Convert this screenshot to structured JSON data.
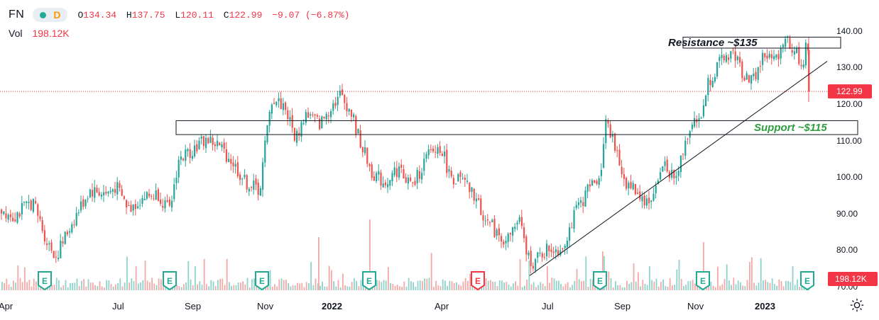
{
  "legend": {
    "symbol": "FN",
    "interval_label": "D",
    "open_label": "O",
    "open": "134.34",
    "high_label": "H",
    "high": "137.75",
    "low_label": "L",
    "low": "120.11",
    "close_label": "C",
    "close": "122.99",
    "change": "−9.07 (−6.87%)",
    "vol_label": "Vol",
    "vol_value": "198.12K"
  },
  "colors": {
    "up": "#26a69a",
    "down": "#ef5350",
    "up_vol": "#8fd3cb",
    "down_vol": "#f4a9a7",
    "support_text": "#2e9e3e",
    "price_label_bg": "#f23645",
    "earnings_green": "#22ab94",
    "earnings_red": "#f23645"
  },
  "chart_data": {
    "type": "candlestick",
    "y_axis": {
      "ticks": [
        "140.00",
        "130.00",
        "120.00",
        "110.00",
        "100.00",
        "90.00",
        "80.00",
        "70.00"
      ],
      "ylim": [
        70,
        142
      ]
    },
    "x_axis": {
      "ticks": [
        "Apr",
        "Jul",
        "Sep",
        "Nov",
        "2022",
        "Apr",
        "Jul",
        "Sep",
        "Nov",
        "2023"
      ],
      "bold_ticks": [
        "2022",
        "2023"
      ]
    },
    "last_price_label": "122.99",
    "last_price": 122.99,
    "volume_label": "198.12K",
    "annotations": [
      {
        "kind": "zone",
        "label": "Resistance ~$135",
        "low": 134.8,
        "high": 137.8
      },
      {
        "kind": "zone",
        "label": "Support ~$115",
        "low": 111.2,
        "high": 115
      },
      {
        "kind": "trendline",
        "from": [
          "Jun 2022",
          72.7
        ],
        "to": [
          "Feb 2023",
          131.2
        ]
      }
    ],
    "earnings_markers": [
      {
        "label": "E",
        "when": "May 2021",
        "color": "green"
      },
      {
        "label": "E",
        "when": "Aug 2021",
        "color": "green"
      },
      {
        "label": "E",
        "when": "Nov 2021",
        "color": "green"
      },
      {
        "label": "E",
        "when": "Feb 2022",
        "color": "green"
      },
      {
        "label": "E",
        "when": "May 2022",
        "color": "red"
      },
      {
        "label": "E",
        "when": "Aug 2022",
        "color": "green"
      },
      {
        "label": "E",
        "when": "Nov 2022",
        "color": "green"
      },
      {
        "label": "E",
        "when": "Feb 2023",
        "color": "green"
      }
    ],
    "price_path": [
      [
        0,
        91
      ],
      [
        18,
        89
      ],
      [
        45,
        93
      ],
      [
        65,
        82
      ],
      [
        78,
        78
      ],
      [
        100,
        87
      ],
      [
        125,
        96
      ],
      [
        150,
        95
      ],
      [
        162,
        97
      ],
      [
        180,
        91
      ],
      [
        200,
        94
      ],
      [
        222,
        95
      ],
      [
        238,
        90
      ],
      [
        250,
        104
      ],
      [
        275,
        108
      ],
      [
        290,
        110
      ],
      [
        308,
        108
      ],
      [
        325,
        104
      ],
      [
        345,
        98
      ],
      [
        365,
        96
      ],
      [
        372,
        108
      ],
      [
        382,
        121
      ],
      [
        400,
        119
      ],
      [
        415,
        110
      ],
      [
        430,
        117
      ],
      [
        450,
        114
      ],
      [
        465,
        119
      ],
      [
        478,
        122
      ],
      [
        492,
        118
      ],
      [
        505,
        110
      ],
      [
        522,
        101
      ],
      [
        540,
        98
      ],
      [
        560,
        102
      ],
      [
        580,
        97
      ],
      [
        600,
        105
      ],
      [
        620,
        108
      ],
      [
        632,
        100
      ],
      [
        652,
        98
      ],
      [
        668,
        94
      ],
      [
        680,
        89
      ],
      [
        700,
        84
      ],
      [
        712,
        82
      ],
      [
        730,
        88
      ],
      [
        740,
        79
      ],
      [
        750,
        76
      ],
      [
        770,
        80
      ],
      [
        790,
        80
      ],
      [
        810,
        90
      ],
      [
        830,
        97
      ],
      [
        846,
        101
      ],
      [
        852,
        117
      ],
      [
        865,
        107
      ],
      [
        880,
        98
      ],
      [
        895,
        96
      ],
      [
        912,
        92
      ],
      [
        925,
        98
      ],
      [
        935,
        104
      ],
      [
        950,
        98
      ],
      [
        962,
        108
      ],
      [
        975,
        116
      ],
      [
        985,
        114
      ],
      [
        995,
        125
      ],
      [
        1010,
        130
      ],
      [
        1030,
        134
      ],
      [
        1045,
        128
      ],
      [
        1060,
        126
      ],
      [
        1075,
        133
      ],
      [
        1090,
        131
      ],
      [
        1105,
        138
      ],
      [
        1118,
        134
      ],
      [
        1130,
        130
      ],
      [
        1136,
        137
      ],
      [
        1140,
        121
      ]
    ]
  }
}
